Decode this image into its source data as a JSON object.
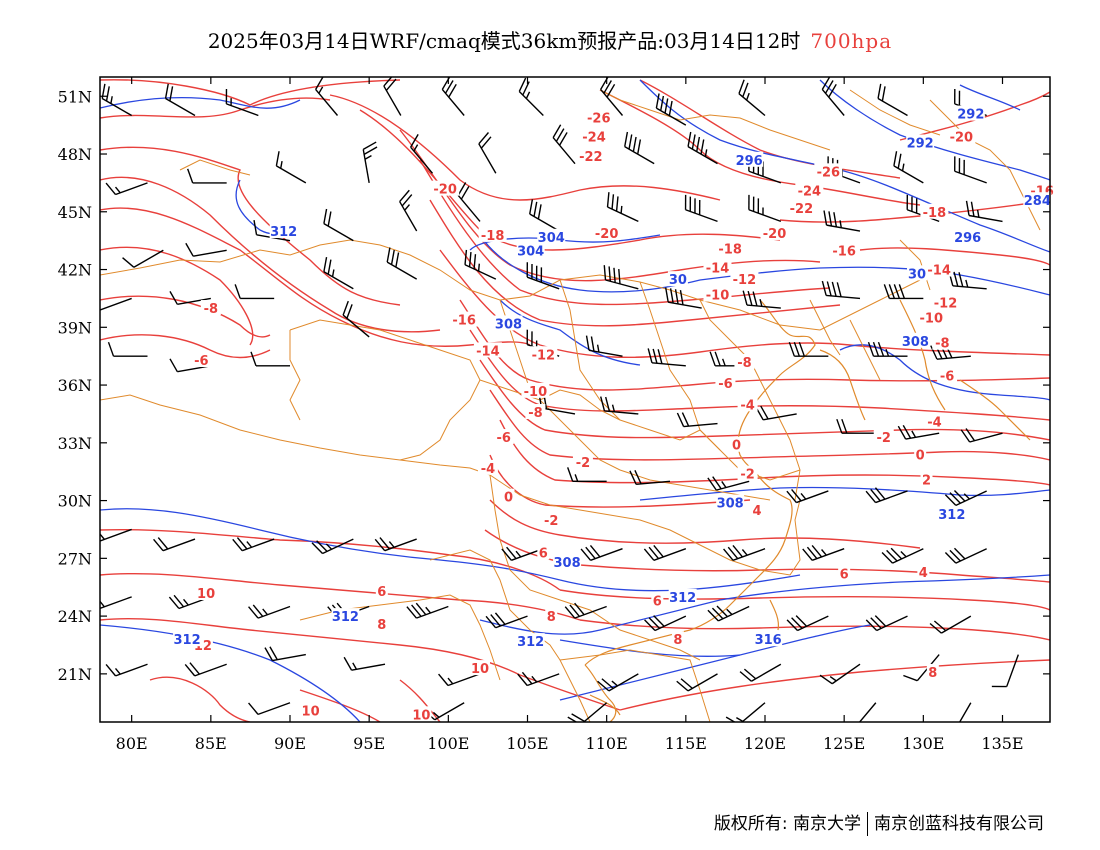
{
  "title": {
    "main": "2025年03月14日WRF/cmaq模式36km预报产品:03月14日12时",
    "level": "700hpa"
  },
  "axes": {
    "y_ticks": [
      "51N",
      "48N",
      "45N",
      "42N",
      "39N",
      "36N",
      "33N",
      "30N",
      "27N",
      "24N",
      "21N"
    ],
    "x_ticks": [
      "80E",
      "85E",
      "90E",
      "95E",
      "100E",
      "105E",
      "110E",
      "115E",
      "120E",
      "125E",
      "130E",
      "135E"
    ]
  },
  "chart_data": {
    "type": "map",
    "lon_range": [
      78,
      138
    ],
    "lat_range": [
      18.5,
      52
    ],
    "lat_ticks": [
      51,
      48,
      45,
      42,
      39,
      36,
      33,
      30,
      27,
      24,
      21
    ],
    "lon_ticks": [
      80,
      85,
      90,
      95,
      100,
      105,
      110,
      115,
      120,
      125,
      130,
      135
    ],
    "colors": {
      "temperature": "#e8403c",
      "geopotential": "#2a47e0",
      "borders": "#e08a2c",
      "wind": "#000000"
    },
    "temperature_labels": [
      {
        "text": "-26",
        "lon": 109.5,
        "lat": 49.9
      },
      {
        "text": "-24",
        "lon": 109.2,
        "lat": 48.9
      },
      {
        "text": "-22",
        "lon": 109.0,
        "lat": 47.9
      },
      {
        "text": "-20",
        "lon": 99.8,
        "lat": 46.2
      },
      {
        "text": "-18",
        "lon": 102.8,
        "lat": 43.8
      },
      {
        "text": "-20",
        "lon": 110.0,
        "lat": 43.9
      },
      {
        "text": "-16",
        "lon": 101.0,
        "lat": 39.4
      },
      {
        "text": "-14",
        "lon": 102.5,
        "lat": 37.8
      },
      {
        "text": "-12",
        "lon": 106.0,
        "lat": 37.6
      },
      {
        "text": "-10",
        "lon": 105.5,
        "lat": 35.7
      },
      {
        "text": "-8",
        "lon": 105.5,
        "lat": 34.6
      },
      {
        "text": "-6",
        "lon": 103.5,
        "lat": 33.3
      },
      {
        "text": "-4",
        "lon": 102.5,
        "lat": 31.7
      },
      {
        "text": "-2",
        "lon": 108.5,
        "lat": 32.0
      },
      {
        "text": "0",
        "lon": 103.8,
        "lat": 30.2
      },
      {
        "text": "-2",
        "lon": 106.5,
        "lat": 29.0
      },
      {
        "text": "-6",
        "lon": 84.4,
        "lat": 37.3
      },
      {
        "text": "-8",
        "lon": 85.0,
        "lat": 40.0
      },
      {
        "text": "-18",
        "lon": 117.8,
        "lat": 43.1
      },
      {
        "text": "-14",
        "lon": 117.0,
        "lat": 42.1
      },
      {
        "text": "-12",
        "lon": 118.7,
        "lat": 41.5
      },
      {
        "text": "-10",
        "lon": 117.0,
        "lat": 40.7
      },
      {
        "text": "-8",
        "lon": 118.7,
        "lat": 37.2
      },
      {
        "text": "-6",
        "lon": 117.5,
        "lat": 36.1
      },
      {
        "text": "-4",
        "lon": 118.9,
        "lat": 35.0
      },
      {
        "text": "0",
        "lon": 118.2,
        "lat": 32.9
      },
      {
        "text": "-2",
        "lon": 118.9,
        "lat": 31.4
      },
      {
        "text": "4",
        "lon": 119.5,
        "lat": 29.5
      },
      {
        "text": "-20",
        "lon": 120.6,
        "lat": 43.9
      },
      {
        "text": "-22",
        "lon": 122.3,
        "lat": 45.2
      },
      {
        "text": "-24",
        "lon": 122.8,
        "lat": 46.1
      },
      {
        "text": "-26",
        "lon": 124.0,
        "lat": 47.1
      },
      {
        "text": "-16",
        "lon": 125.0,
        "lat": 43.0
      },
      {
        "text": "-20",
        "lon": 132.4,
        "lat": 48.9
      },
      {
        "text": "-18",
        "lon": 130.7,
        "lat": 45.0
      },
      {
        "text": "-16",
        "lon": 137.5,
        "lat": 46.1
      },
      {
        "text": "-14",
        "lon": 131.0,
        "lat": 42.0
      },
      {
        "text": "-12",
        "lon": 131.4,
        "lat": 40.3
      },
      {
        "text": "-10",
        "lon": 130.5,
        "lat": 39.5
      },
      {
        "text": "-8",
        "lon": 131.2,
        "lat": 38.2
      },
      {
        "text": "-6",
        "lon": 131.5,
        "lat": 36.5
      },
      {
        "text": "-4",
        "lon": 130.7,
        "lat": 34.1
      },
      {
        "text": "-2",
        "lon": 127.5,
        "lat": 33.3
      },
      {
        "text": "0",
        "lon": 129.8,
        "lat": 32.4
      },
      {
        "text": "2",
        "lon": 130.2,
        "lat": 31.1
      },
      {
        "text": "4",
        "lon": 130.0,
        "lat": 26.3
      },
      {
        "text": "6",
        "lon": 125.0,
        "lat": 26.2
      },
      {
        "text": "8",
        "lon": 130.6,
        "lat": 21.1
      },
      {
        "text": "6",
        "lon": 113.2,
        "lat": 24.8
      },
      {
        "text": "8",
        "lon": 114.5,
        "lat": 22.8
      },
      {
        "text": "6",
        "lon": 106.0,
        "lat": 27.3
      },
      {
        "text": "8",
        "lon": 106.5,
        "lat": 24.0
      },
      {
        "text": "10",
        "lon": 102.0,
        "lat": 21.3
      },
      {
        "text": "6",
        "lon": 95.8,
        "lat": 25.3
      },
      {
        "text": "8",
        "lon": 95.8,
        "lat": 23.6
      },
      {
        "text": "10",
        "lon": 84.7,
        "lat": 25.2
      },
      {
        "text": "12",
        "lon": 84.5,
        "lat": 22.5
      },
      {
        "text": "10",
        "lon": 91.3,
        "lat": 19.1
      },
      {
        "text": "10",
        "lon": 98.3,
        "lat": 18.9
      }
    ],
    "geopotential_labels": [
      {
        "text": "292",
        "lon": 133.0,
        "lat": 50.1
      },
      {
        "text": "292",
        "lon": 129.8,
        "lat": 48.6
      },
      {
        "text": "296",
        "lon": 119.0,
        "lat": 47.7
      },
      {
        "text": "284",
        "lon": 137.2,
        "lat": 45.6
      },
      {
        "text": "296",
        "lon": 132.8,
        "lat": 43.7
      },
      {
        "text": "312",
        "lon": 89.6,
        "lat": 44.0
      },
      {
        "text": "304",
        "lon": 106.5,
        "lat": 43.7
      },
      {
        "text": "304",
        "lon": 105.2,
        "lat": 43.0
      },
      {
        "text": "30",
        "lon": 114.5,
        "lat": 41.5
      },
      {
        "text": "30",
        "lon": 129.6,
        "lat": 41.8
      },
      {
        "text": "308",
        "lon": 103.8,
        "lat": 39.2
      },
      {
        "text": "308",
        "lon": 129.5,
        "lat": 38.3
      },
      {
        "text": "308",
        "lon": 117.8,
        "lat": 29.9
      },
      {
        "text": "312",
        "lon": 131.8,
        "lat": 29.3
      },
      {
        "text": "308",
        "lon": 107.5,
        "lat": 26.8
      },
      {
        "text": "312",
        "lon": 114.8,
        "lat": 25.0
      },
      {
        "text": "312",
        "lon": 93.5,
        "lat": 24.0
      },
      {
        "text": "312",
        "lon": 105.2,
        "lat": 22.7
      },
      {
        "text": "316",
        "lon": 120.2,
        "lat": 22.8
      },
      {
        "text": "312",
        "lon": 83.5,
        "lat": 22.8
      }
    ],
    "wind": [
      {
        "lon": 80,
        "lat": 50,
        "dir": 300,
        "spd": 25
      },
      {
        "lon": 84,
        "lat": 50,
        "dir": 300,
        "spd": 20
      },
      {
        "lon": 88,
        "lat": 50,
        "dir": 290,
        "spd": 15
      },
      {
        "lon": 93,
        "lat": 50,
        "dir": 320,
        "spd": 15
      },
      {
        "lon": 97,
        "lat": 50,
        "dir": 330,
        "spd": 20
      },
      {
        "lon": 101,
        "lat": 50,
        "dir": 320,
        "spd": 30
      },
      {
        "lon": 106,
        "lat": 50,
        "dir": 315,
        "spd": 25
      },
      {
        "lon": 111,
        "lat": 50,
        "dir": 320,
        "spd": 30
      },
      {
        "lon": 115,
        "lat": 49.5,
        "dir": 300,
        "spd": 40
      },
      {
        "lon": 120,
        "lat": 50,
        "dir": 310,
        "spd": 25
      },
      {
        "lon": 125,
        "lat": 50,
        "dir": 320,
        "spd": 30
      },
      {
        "lon": 129,
        "lat": 50,
        "dir": 300,
        "spd": 20
      },
      {
        "lon": 134,
        "lat": 50,
        "dir": 290,
        "spd": 20
      },
      {
        "lon": 81,
        "lat": 46.5,
        "dir": 250,
        "spd": 15
      },
      {
        "lon": 86,
        "lat": 46.5,
        "dir": 270,
        "spd": 10
      },
      {
        "lon": 91,
        "lat": 46.5,
        "dir": 300,
        "spd": 15
      },
      {
        "lon": 95,
        "lat": 46.5,
        "dir": 350,
        "spd": 25
      },
      {
        "lon": 99,
        "lat": 47,
        "dir": 320,
        "spd": 15
      },
      {
        "lon": 103,
        "lat": 47,
        "dir": 330,
        "spd": 20
      },
      {
        "lon": 108,
        "lat": 47.5,
        "dir": 320,
        "spd": 30
      },
      {
        "lon": 113,
        "lat": 47.5,
        "dir": 300,
        "spd": 40
      },
      {
        "lon": 117,
        "lat": 47.5,
        "dir": 300,
        "spd": 45
      },
      {
        "lon": 121,
        "lat": 46.5,
        "dir": 290,
        "spd": 40
      },
      {
        "lon": 126,
        "lat": 46.5,
        "dir": 290,
        "spd": 35
      },
      {
        "lon": 130,
        "lat": 46.5,
        "dir": 300,
        "spd": 25
      },
      {
        "lon": 134,
        "lat": 46.5,
        "dir": 290,
        "spd": 30
      },
      {
        "lon": 82,
        "lat": 43,
        "dir": 240,
        "spd": 10
      },
      {
        "lon": 86,
        "lat": 43,
        "dir": 260,
        "spd": 10
      },
      {
        "lon": 90,
        "lat": 43.5,
        "dir": 280,
        "spd": 10
      },
      {
        "lon": 94,
        "lat": 43.5,
        "dir": 300,
        "spd": 20
      },
      {
        "lon": 98,
        "lat": 44,
        "dir": 330,
        "spd": 25
      },
      {
        "lon": 102,
        "lat": 44.5,
        "dir": 320,
        "spd": 20
      },
      {
        "lon": 107,
        "lat": 44,
        "dir": 300,
        "spd": 30
      },
      {
        "lon": 112,
        "lat": 44.5,
        "dir": 295,
        "spd": 35
      },
      {
        "lon": 117,
        "lat": 44.5,
        "dir": 290,
        "spd": 40
      },
      {
        "lon": 121,
        "lat": 44.5,
        "dir": 290,
        "spd": 35
      },
      {
        "lon": 126,
        "lat": 44,
        "dir": 280,
        "spd": 35
      },
      {
        "lon": 131,
        "lat": 44.5,
        "dir": 290,
        "spd": 30
      },
      {
        "lon": 135,
        "lat": 44.5,
        "dir": 280,
        "spd": 25
      },
      {
        "lon": 80,
        "lat": 40.5,
        "dir": 250,
        "spd": 10
      },
      {
        "lon": 85,
        "lat": 40.5,
        "dir": 260,
        "spd": 10
      },
      {
        "lon": 89,
        "lat": 40.5,
        "dir": 270,
        "spd": 10
      },
      {
        "lon": 94,
        "lat": 41,
        "dir": 300,
        "spd": 25
      },
      {
        "lon": 98,
        "lat": 41.5,
        "dir": 300,
        "spd": 30
      },
      {
        "lon": 103,
        "lat": 41.5,
        "dir": 295,
        "spd": 35
      },
      {
        "lon": 107,
        "lat": 41,
        "dir": 290,
        "spd": 40
      },
      {
        "lon": 112,
        "lat": 41,
        "dir": 285,
        "spd": 40
      },
      {
        "lon": 116,
        "lat": 40,
        "dir": 280,
        "spd": 40
      },
      {
        "lon": 121,
        "lat": 40,
        "dir": 275,
        "spd": 35
      },
      {
        "lon": 126,
        "lat": 40.5,
        "dir": 275,
        "spd": 40
      },
      {
        "lon": 130,
        "lat": 40.5,
        "dir": 270,
        "spd": 40
      },
      {
        "lon": 134,
        "lat": 41,
        "dir": 275,
        "spd": 35
      },
      {
        "lon": 81,
        "lat": 37.5,
        "dir": 270,
        "spd": 10
      },
      {
        "lon": 85,
        "lat": 37,
        "dir": 260,
        "spd": 10
      },
      {
        "lon": 90,
        "lat": 37,
        "dir": 270,
        "spd": 10
      },
      {
        "lon": 95,
        "lat": 38.5,
        "dir": 310,
        "spd": 20
      },
      {
        "lon": 107,
        "lat": 37.5,
        "dir": 290,
        "spd": 25
      },
      {
        "lon": 111,
        "lat": 37.5,
        "dir": 280,
        "spd": 25
      },
      {
        "lon": 115,
        "lat": 37,
        "dir": 275,
        "spd": 30
      },
      {
        "lon": 119,
        "lat": 37,
        "dir": 270,
        "spd": 25
      },
      {
        "lon": 124,
        "lat": 37.5,
        "dir": 270,
        "spd": 30
      },
      {
        "lon": 129,
        "lat": 37.5,
        "dir": 270,
        "spd": 35
      },
      {
        "lon": 133,
        "lat": 37.5,
        "dir": 265,
        "spd": 40
      },
      {
        "lon": 108,
        "lat": 34.5,
        "dir": 280,
        "spd": 20
      },
      {
        "lon": 112,
        "lat": 34.5,
        "dir": 275,
        "spd": 25
      },
      {
        "lon": 117,
        "lat": 34,
        "dir": 265,
        "spd": 20
      },
      {
        "lon": 122,
        "lat": 34.5,
        "dir": 260,
        "spd": 20
      },
      {
        "lon": 127,
        "lat": 33.5,
        "dir": 270,
        "spd": 20
      },
      {
        "lon": 131,
        "lat": 33.5,
        "dir": 260,
        "spd": 25
      },
      {
        "lon": 135,
        "lat": 33.5,
        "dir": 255,
        "spd": 20
      },
      {
        "lon": 110,
        "lat": 31,
        "dir": 270,
        "spd": 15
      },
      {
        "lon": 114,
        "lat": 31,
        "dir": 265,
        "spd": 20
      },
      {
        "lon": 119,
        "lat": 31,
        "dir": 255,
        "spd": 25
      },
      {
        "lon": 124,
        "lat": 30.5,
        "dir": 250,
        "spd": 25
      },
      {
        "lon": 129,
        "lat": 30.5,
        "dir": 250,
        "spd": 30
      },
      {
        "lon": 134,
        "lat": 30.5,
        "dir": 245,
        "spd": 35
      },
      {
        "lon": 80,
        "lat": 28.5,
        "dir": 250,
        "spd": 15
      },
      {
        "lon": 84,
        "lat": 28,
        "dir": 250,
        "spd": 20
      },
      {
        "lon": 89,
        "lat": 28,
        "dir": 250,
        "spd": 25
      },
      {
        "lon": 94,
        "lat": 28,
        "dir": 245,
        "spd": 25
      },
      {
        "lon": 98,
        "lat": 28,
        "dir": 250,
        "spd": 25
      },
      {
        "lon": 106,
        "lat": 27.5,
        "dir": 250,
        "spd": 25
      },
      {
        "lon": 111,
        "lat": 27.5,
        "dir": 250,
        "spd": 30
      },
      {
        "lon": 115,
        "lat": 27.5,
        "dir": 250,
        "spd": 30
      },
      {
        "lon": 120,
        "lat": 27.5,
        "dir": 250,
        "spd": 35
      },
      {
        "lon": 125,
        "lat": 27.5,
        "dir": 250,
        "spd": 35
      },
      {
        "lon": 130,
        "lat": 27.5,
        "dir": 245,
        "spd": 35
      },
      {
        "lon": 134,
        "lat": 27.5,
        "dir": 245,
        "spd": 30
      },
      {
        "lon": 80,
        "lat": 25,
        "dir": 250,
        "spd": 20
      },
      {
        "lon": 85,
        "lat": 25,
        "dir": 250,
        "spd": 25
      },
      {
        "lon": 90,
        "lat": 24.5,
        "dir": 250,
        "spd": 25
      },
      {
        "lon": 95,
        "lat": 24.5,
        "dir": 250,
        "spd": 30
      },
      {
        "lon": 100,
        "lat": 24.5,
        "dir": 250,
        "spd": 35
      },
      {
        "lon": 105,
        "lat": 24,
        "dir": 250,
        "spd": 30
      },
      {
        "lon": 110,
        "lat": 24.5,
        "dir": 250,
        "spd": 30
      },
      {
        "lon": 115,
        "lat": 24,
        "dir": 245,
        "spd": 30
      },
      {
        "lon": 119,
        "lat": 24.5,
        "dir": 245,
        "spd": 35
      },
      {
        "lon": 124,
        "lat": 24,
        "dir": 245,
        "spd": 30
      },
      {
        "lon": 129,
        "lat": 24,
        "dir": 245,
        "spd": 30
      },
      {
        "lon": 133,
        "lat": 24,
        "dir": 240,
        "spd": 20
      },
      {
        "lon": 81,
        "lat": 21.5,
        "dir": 250,
        "spd": 15
      },
      {
        "lon": 86,
        "lat": 21.5,
        "dir": 250,
        "spd": 20
      },
      {
        "lon": 91,
        "lat": 22,
        "dir": 260,
        "spd": 20
      },
      {
        "lon": 96,
        "lat": 21.5,
        "dir": 260,
        "spd": 15
      },
      {
        "lon": 102,
        "lat": 21,
        "dir": 250,
        "spd": 15
      },
      {
        "lon": 107,
        "lat": 21,
        "dir": 250,
        "spd": 25
      },
      {
        "lon": 112,
        "lat": 21,
        "dir": 240,
        "spd": 25
      },
      {
        "lon": 117,
        "lat": 21,
        "dir": 240,
        "spd": 20
      },
      {
        "lon": 121,
        "lat": 21.5,
        "dir": 240,
        "spd": 20
      },
      {
        "lon": 126,
        "lat": 21.5,
        "dir": 235,
        "spd": 15
      },
      {
        "lon": 131,
        "lat": 22,
        "dir": 220,
        "spd": 10
      },
      {
        "lon": 136,
        "lat": 22,
        "dir": 200,
        "spd": 10
      },
      {
        "lon": 90,
        "lat": 19.5,
        "dir": 250,
        "spd": 10
      },
      {
        "lon": 101,
        "lat": 19.5,
        "dir": 240,
        "spd": 15
      },
      {
        "lon": 110,
        "lat": 19.5,
        "dir": 230,
        "spd": 20
      },
      {
        "lon": 120,
        "lat": 19.5,
        "dir": 230,
        "spd": 15
      },
      {
        "lon": 127,
        "lat": 19.5,
        "dir": 220,
        "spd": 10
      },
      {
        "lon": 133,
        "lat": 19.5,
        "dir": 210,
        "spd": 10
      }
    ]
  },
  "footer": {
    "credit_left": "版权所有: 南京大学",
    "credit_right": "南京创蓝科技有限公司"
  }
}
